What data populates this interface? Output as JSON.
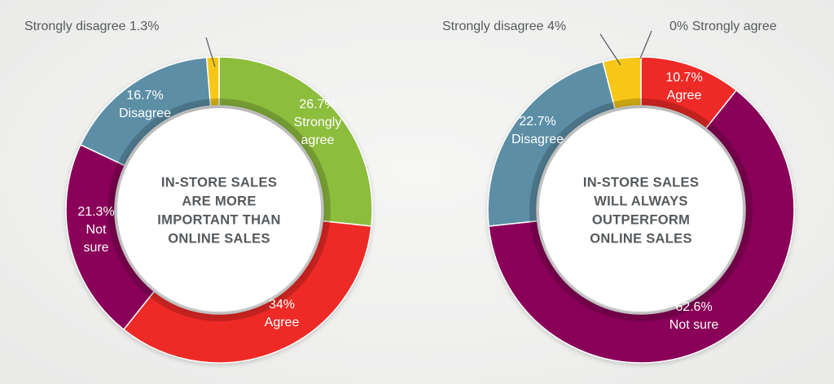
{
  "chart_data": [
    {
      "type": "pie",
      "center_text": [
        "IN-STORE SALES",
        "ARE MORE",
        "IMPORTANT THAN",
        "ONLINE SALES"
      ],
      "slices": [
        {
          "name": "Strongly agree",
          "value": 26.7,
          "label": "26.7%",
          "label_lines": [
            "26.7%",
            "Strongly",
            "agree"
          ],
          "color": "#8dbd3e"
        },
        {
          "name": "Agree",
          "value": 34,
          "label": "34%",
          "label_lines": [
            "34%",
            "Agree"
          ],
          "color": "#ee2a28"
        },
        {
          "name": "Not sure",
          "value": 21.3,
          "label": "21.3%",
          "label_lines": [
            "21.3%",
            "Not",
            "sure"
          ],
          "color": "#8a0059"
        },
        {
          "name": "Disagree",
          "value": 16.7,
          "label": "16.7%",
          "label_lines": [
            "16.7%",
            "Disagree"
          ],
          "color": "#5b8ea6"
        },
        {
          "name": "Strongly disagree",
          "value": 1.3,
          "label": "1.3%",
          "label_lines": [],
          "color": "#f6c712"
        }
      ],
      "callouts": [
        {
          "text": "Strongly disagree  1.3%",
          "slice": 4
        }
      ]
    },
    {
      "type": "pie",
      "center_text": [
        "IN-STORE SALES",
        "WILL ALWAYS",
        "OUTPERFORM",
        "ONLINE SALES"
      ],
      "slices": [
        {
          "name": "Strongly agree",
          "value": 0,
          "label": "0%",
          "label_lines": [],
          "color": "#8dbd3e"
        },
        {
          "name": "Agree",
          "value": 10.7,
          "label": "10.7%",
          "label_lines": [
            "10.7%",
            "Agree"
          ],
          "color": "#ee2a28"
        },
        {
          "name": "Not sure",
          "value": 62.6,
          "label": "62.6%",
          "label_lines": [
            "62.6%",
            "Not sure"
          ],
          "color": "#8a0059"
        },
        {
          "name": "Disagree",
          "value": 22.7,
          "label": "22.7%",
          "label_lines": [
            "22.7%",
            "Disagree"
          ],
          "color": "#5b8ea6"
        },
        {
          "name": "Strongly disagree",
          "value": 4,
          "label": "4%",
          "label_lines": [],
          "color": "#f6c712"
        }
      ],
      "callouts": [
        {
          "text": "Strongly disagree  4%",
          "slice": 4
        },
        {
          "text": "0%  Strongly agree",
          "slice": 0
        }
      ]
    }
  ]
}
